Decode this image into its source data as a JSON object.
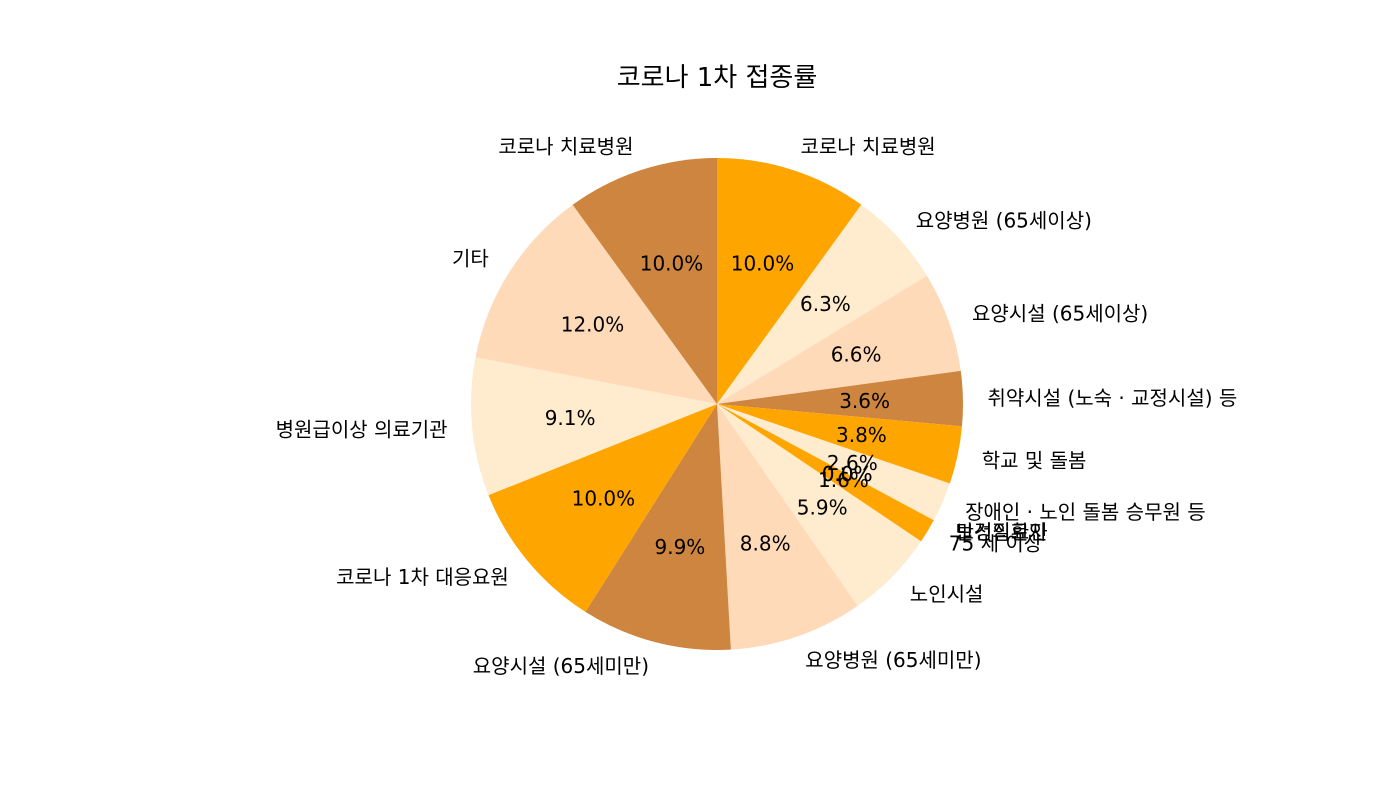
{
  "chart_data": {
    "type": "pie",
    "title": "코로나 1차 접종률",
    "start_angle_deg": 90,
    "direction": "clockwise",
    "colors": [
      "#FFA500",
      "#FFEBCD",
      "#FFDAB9",
      "#CD853F"
    ],
    "slices": [
      {
        "label": "코로나 치료병원",
        "value": 10.0,
        "pct_label": "10.0%"
      },
      {
        "label": "요양병원 (65세이상)",
        "value": 6.3,
        "pct_label": "6.3%"
      },
      {
        "label": "요양시설 (65세이상)",
        "value": 6.6,
        "pct_label": "6.6%"
      },
      {
        "label": "취약시설 (노숙 · 교정시설) 등",
        "value": 3.6,
        "pct_label": "3.6%"
      },
      {
        "label": "학교 및 돌봄",
        "value": 3.8,
        "pct_label": "3.8%"
      },
      {
        "label": "장애인 · 노인 돌봄 승무원 등",
        "value": 2.6,
        "pct_label": "2.6%"
      },
      {
        "label": "보건의료인",
        "value": 0.0,
        "pct_label": "0.0%"
      },
      {
        "label": "만성질환자",
        "value": 0.0,
        "pct_label": "0.0%"
      },
      {
        "label": "75 세 이상",
        "value": 1.6,
        "pct_label": "1.6%"
      },
      {
        "label": "노인시설",
        "value": 5.9,
        "pct_label": "5.9%"
      },
      {
        "label": "요양병원 (65세미만)",
        "value": 8.8,
        "pct_label": "8.8%"
      },
      {
        "label": "요양시설 (65세미만)",
        "value": 9.9,
        "pct_label": "9.9%"
      },
      {
        "label": "코로나 1차 대응요원",
        "value": 10.0,
        "pct_label": "10.0%"
      },
      {
        "label": "병원급이상 의료기관",
        "value": 9.1,
        "pct_label": "9.1%"
      },
      {
        "label": "기타",
        "value": 12.0,
        "pct_label": "12.0%"
      },
      {
        "label": "코로나 치료병원",
        "value": 10.0,
        "pct_label": "10.0%"
      }
    ]
  }
}
